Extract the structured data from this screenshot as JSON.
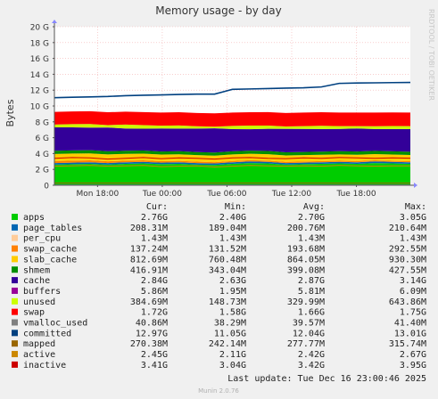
{
  "chart_data": {
    "type": "area",
    "title": "Memory usage - by day",
    "ylabel": "Bytes",
    "side_label": "RRDTOOL / TOBI OETIKER",
    "footer": "Munin 2.0.76",
    "last_update": "Last update: Tue Dec 16 23:00:46 2025",
    "ylim": [
      0,
      20
    ],
    "y_unit": "G",
    "y_ticks": [
      {
        "v": 0,
        "label": "0"
      },
      {
        "v": 2,
        "label": "2 G"
      },
      {
        "v": 4,
        "label": "4 G"
      },
      {
        "v": 6,
        "label": "6 G"
      },
      {
        "v": 8,
        "label": "8 G"
      },
      {
        "v": 10,
        "label": "10 G"
      },
      {
        "v": 12,
        "label": "12 G"
      },
      {
        "v": 14,
        "label": "14 G"
      },
      {
        "v": 16,
        "label": "16 G"
      },
      {
        "v": 18,
        "label": "18 G"
      },
      {
        "v": 20,
        "label": "20 G"
      }
    ],
    "x_hours_from_start": [
      0,
      33
    ],
    "x_ticks": [
      {
        "h": 4,
        "label": "Mon 18:00"
      },
      {
        "h": 10,
        "label": "Tue 00:00"
      },
      {
        "h": 16,
        "label": "Tue 06:00"
      },
      {
        "h": 22,
        "label": "Tue 12:00"
      },
      {
        "h": 28,
        "label": "Tue 18:00"
      }
    ],
    "legend_headers": [
      "Cur:",
      "Min:",
      "Avg:",
      "Max:"
    ],
    "series": [
      {
        "name": "apps",
        "color": "#00cc00",
        "kind": "area",
        "cur": "2.76G",
        "min": "2.40G",
        "avg": "2.70G",
        "max": "3.05G",
        "values": [
          2.6,
          2.65,
          2.7,
          2.6,
          2.7,
          2.75,
          2.65,
          2.7,
          2.6,
          2.55,
          2.7,
          2.8,
          2.75,
          2.6,
          2.65,
          2.7,
          2.75,
          2.7,
          2.8,
          2.75,
          2.7
        ]
      },
      {
        "name": "page_tables",
        "color": "#0066b3",
        "kind": "area",
        "cur": "208.31M",
        "min": "189.04M",
        "avg": "200.76M",
        "max": "210.64M",
        "values": [
          0.2,
          0.2,
          0.2,
          0.2,
          0.2,
          0.2,
          0.2,
          0.2,
          0.2,
          0.2,
          0.2,
          0.2,
          0.2,
          0.2,
          0.2,
          0.2,
          0.2,
          0.2,
          0.2,
          0.2,
          0.2
        ]
      },
      {
        "name": "per_cpu",
        "color": "#ffcc99",
        "kind": "area",
        "cur": "1.43M",
        "min": "1.43M",
        "avg": "1.43M",
        "max": "1.43M",
        "values": [
          0.0014,
          0.0014,
          0.0014,
          0.0014,
          0.0014,
          0.0014,
          0.0014,
          0.0014,
          0.0014,
          0.0014,
          0.0014,
          0.0014,
          0.0014,
          0.0014,
          0.0014,
          0.0014,
          0.0014,
          0.0014,
          0.0014,
          0.0014,
          0.0014
        ]
      },
      {
        "name": "swap_cache",
        "color": "#ff8000",
        "kind": "area",
        "cur": "137.24M",
        "min": "131.52M",
        "avg": "193.68M",
        "max": "292.55M",
        "values": [
          0.25,
          0.25,
          0.24,
          0.22,
          0.2,
          0.19,
          0.18,
          0.17,
          0.17,
          0.16,
          0.16,
          0.16,
          0.15,
          0.15,
          0.14,
          0.14,
          0.14,
          0.14,
          0.14,
          0.13,
          0.13
        ]
      },
      {
        "name": "slab_cache",
        "color": "#ffcc00",
        "kind": "area",
        "cur": "812.69M",
        "min": "760.48M",
        "avg": "864.05M",
        "max": "930.30M",
        "values": [
          0.9,
          0.9,
          0.88,
          0.87,
          0.86,
          0.85,
          0.85,
          0.84,
          0.84,
          0.83,
          0.83,
          0.82,
          0.82,
          0.81,
          0.81,
          0.8,
          0.8,
          0.8,
          0.79,
          0.79,
          0.79
        ]
      },
      {
        "name": "shmem",
        "color": "#008f00",
        "kind": "area",
        "cur": "416.91M",
        "min": "343.04M",
        "avg": "399.08M",
        "max": "427.55M",
        "values": [
          0.4,
          0.4,
          0.4,
          0.39,
          0.39,
          0.39,
          0.38,
          0.38,
          0.38,
          0.39,
          0.39,
          0.39,
          0.4,
          0.4,
          0.4,
          0.4,
          0.41,
          0.41,
          0.41,
          0.41,
          0.41
        ]
      },
      {
        "name": "cache",
        "color": "#330099",
        "kind": "area",
        "cur": "2.84G",
        "min": "2.63G",
        "avg": "2.87G",
        "max": "3.14G",
        "values": [
          2.95,
          2.9,
          2.85,
          3.0,
          2.8,
          2.75,
          2.9,
          2.85,
          2.95,
          3.05,
          2.8,
          2.7,
          2.8,
          2.95,
          2.9,
          2.85,
          2.8,
          2.9,
          2.75,
          2.8,
          2.85
        ]
      },
      {
        "name": "buffers",
        "color": "#990099",
        "kind": "area",
        "cur": "5.86M",
        "min": "1.95M",
        "avg": "5.81M",
        "max": "6.09M",
        "values": [
          0.006,
          0.006,
          0.006,
          0.006,
          0.006,
          0.006,
          0.006,
          0.006,
          0.006,
          0.006,
          0.006,
          0.006,
          0.006,
          0.006,
          0.006,
          0.006,
          0.006,
          0.006,
          0.006,
          0.006,
          0.006
        ]
      },
      {
        "name": "unused",
        "color": "#ccff00",
        "kind": "area",
        "cur": "384.69M",
        "min": "148.73M",
        "avg": "329.99M",
        "max": "643.86M",
        "values": [
          0.35,
          0.4,
          0.45,
          0.3,
          0.5,
          0.45,
          0.35,
          0.4,
          0.3,
          0.2,
          0.4,
          0.45,
          0.4,
          0.3,
          0.35,
          0.4,
          0.35,
          0.3,
          0.35,
          0.38,
          0.37
        ]
      },
      {
        "name": "swap",
        "color": "#ff0000",
        "kind": "area",
        "cur": "1.72G",
        "min": "1.58G",
        "avg": "1.66G",
        "max": "1.75G",
        "values": [
          1.6,
          1.6,
          1.61,
          1.62,
          1.63,
          1.64,
          1.65,
          1.66,
          1.67,
          1.68,
          1.68,
          1.69,
          1.7,
          1.7,
          1.71,
          1.71,
          1.72,
          1.72,
          1.72,
          1.72,
          1.72
        ]
      },
      {
        "name": "vmalloc_used",
        "color": "#808080",
        "kind": "line",
        "cur": "40.86M",
        "min": "38.29M",
        "avg": "39.57M",
        "max": "41.40M",
        "values": [
          0.04,
          0.04,
          0.04,
          0.04,
          0.04,
          0.04,
          0.04,
          0.04,
          0.04,
          0.04,
          0.04,
          0.04,
          0.04,
          0.04,
          0.04,
          0.04,
          0.04,
          0.04,
          0.04,
          0.04,
          0.04
        ]
      },
      {
        "name": "committed",
        "color": "#004080",
        "kind": "line",
        "cur": "12.97G",
        "min": "11.05G",
        "avg": "12.04G",
        "max": "13.01G",
        "values": [
          11.05,
          11.1,
          11.15,
          11.2,
          11.3,
          11.35,
          11.4,
          11.45,
          11.5,
          11.5,
          12.1,
          12.15,
          12.2,
          12.25,
          12.3,
          12.4,
          12.85,
          12.9,
          12.92,
          12.95,
          12.97
        ]
      },
      {
        "name": "mapped",
        "color": "#996600",
        "kind": "line",
        "cur": "270.38M",
        "min": "242.14M",
        "avg": "277.77M",
        "max": "315.74M",
        "values": [
          0.28,
          0.28,
          0.28,
          0.28,
          0.28,
          0.28,
          0.28,
          0.28,
          0.28,
          0.28,
          0.28,
          0.28,
          0.28,
          0.28,
          0.28,
          0.28,
          0.27,
          0.27,
          0.27,
          0.27,
          0.27
        ]
      },
      {
        "name": "active",
        "color": "#cc8800",
        "kind": "line",
        "cur": "2.45G",
        "min": "2.11G",
        "avg": "2.42G",
        "max": "2.67G",
        "values": [
          2.4,
          2.45,
          2.5,
          2.4,
          2.45,
          2.5,
          2.35,
          2.4,
          2.45,
          2.3,
          2.4,
          2.5,
          2.45,
          2.4,
          2.45,
          2.4,
          2.5,
          2.45,
          2.4,
          2.45,
          2.45
        ]
      },
      {
        "name": "inactive",
        "color": "#cc0000",
        "kind": "line",
        "cur": "3.41G",
        "min": "3.04G",
        "avg": "3.42G",
        "max": "3.95G",
        "values": [
          3.4,
          3.5,
          3.45,
          3.3,
          3.4,
          3.5,
          3.35,
          3.45,
          3.4,
          3.3,
          3.45,
          3.5,
          3.4,
          3.35,
          3.45,
          3.4,
          3.5,
          3.45,
          3.4,
          3.45,
          3.41
        ]
      }
    ]
  }
}
